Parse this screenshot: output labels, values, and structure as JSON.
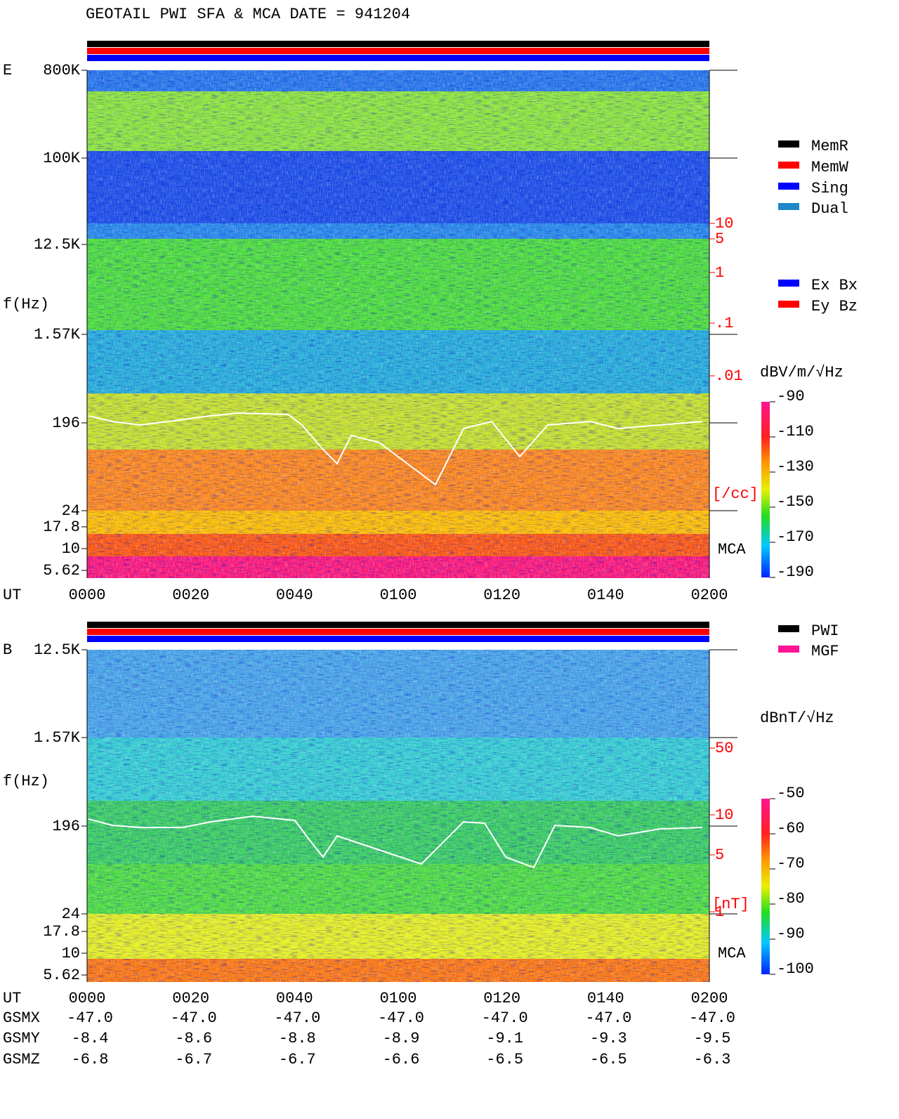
{
  "title": "GEOTAIL  PWI SFA & MCA   DATE = 941204",
  "panels": [
    {
      "label": "E",
      "ylabel": "f(Hz)",
      "xlabel": "UT",
      "yticks": [
        "800K",
        "100K",
        "12.5K",
        "1.57K",
        "196",
        "24",
        "17.8",
        "10",
        "5.62"
      ],
      "xticks": [
        "0000",
        "0020",
        "0040",
        "0100",
        "0120",
        "0140",
        "0200"
      ],
      "right_scale": [
        "10",
        "5",
        "1",
        ".1",
        ".01"
      ],
      "right_unit": "[/cc]",
      "mca": "MCA",
      "legend": [
        {
          "name": "MemR",
          "color": "#000000"
        },
        {
          "name": "MemW",
          "color": "#ff0000"
        },
        {
          "name": "Sing",
          "color": "#0000ff"
        },
        {
          "name": "Dual",
          "color": "#1e88c8"
        }
      ],
      "legend2": [
        {
          "name": "Ex Bx",
          "color": "#0000ff"
        },
        {
          "name": "Ey Bz",
          "color": "#ff0000"
        }
      ],
      "colorbar": {
        "title": "dBV/m/√Hz",
        "lim": [
          -190,
          -90
        ],
        "ticks": [
          -90,
          -110,
          -130,
          -150,
          -170,
          -190
        ]
      }
    },
    {
      "label": "B",
      "ylabel": "f(Hz)",
      "xlabel": "UT",
      "yticks": [
        "12.5K",
        "1.57K",
        "196",
        "24",
        "17.8",
        "10",
        "5.62"
      ],
      "xticks": [
        "0000",
        "0020",
        "0040",
        "0100",
        "0120",
        "0140",
        "0200"
      ],
      "right_scale": [
        "50",
        "10",
        "5",
        "1"
      ],
      "right_unit": "[nT]",
      "mca": "MCA",
      "legend": [
        {
          "name": "PWI",
          "color": "#000000"
        },
        {
          "name": "MGF",
          "color": "#ff1493"
        }
      ],
      "colorbar": {
        "title": "dBnT/√Hz",
        "lim": [
          -100,
          -50
        ],
        "ticks": [
          -50,
          -60,
          -70,
          -80,
          -90,
          -100
        ]
      }
    }
  ],
  "orbit": {
    "xlabel": "UT",
    "rows": [
      {
        "name": "GSMX",
        "values": [
          "-47.0",
          "-47.0",
          "-47.0",
          "-47.0",
          "-47.0",
          "-47.0",
          "-47.0"
        ]
      },
      {
        "name": "GSMY",
        "values": [
          "-8.4",
          "-8.6",
          "-8.8",
          "-8.9",
          "-9.1",
          "-9.3",
          "-9.5"
        ]
      },
      {
        "name": "GSMZ",
        "values": [
          "-6.8",
          "-6.7",
          "-6.7",
          "-6.6",
          "-6.5",
          "-6.5",
          "-6.3"
        ]
      }
    ]
  }
}
